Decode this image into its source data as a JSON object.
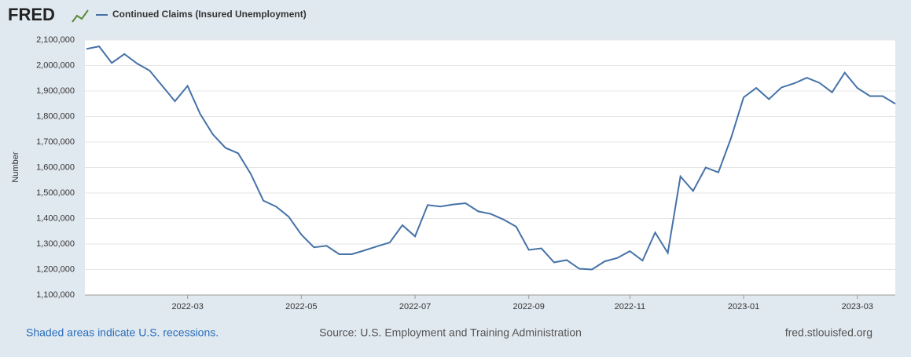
{
  "logo": "FRED",
  "chart_data": {
    "type": "line",
    "y_label": "Number",
    "categories": [
      null,
      null,
      null,
      null,
      null,
      null,
      null,
      null,
      "2022-03",
      null,
      null,
      null,
      null,
      null,
      null,
      null,
      null,
      "2022-05",
      null,
      null,
      null,
      null,
      null,
      null,
      null,
      null,
      "2022-07",
      null,
      null,
      null,
      null,
      null,
      null,
      null,
      null,
      "2022-09",
      null,
      null,
      null,
      null,
      null,
      null,
      null,
      "2022-11",
      null,
      null,
      null,
      null,
      null,
      null,
      null,
      null,
      "2023-01",
      null,
      null,
      null,
      null,
      null,
      null,
      null,
      null,
      "2023-03",
      null,
      null,
      null
    ],
    "series": [
      {
        "name": "Continued Claims (Insured Unemployment)",
        "color": "#4572a7",
        "values": [
          2065000,
          2075000,
          2010000,
          2045000,
          2008000,
          1980000,
          1920000,
          1860000,
          1920000,
          1810000,
          1730000,
          1677000,
          1656000,
          1575000,
          1470000,
          1447000,
          1407000,
          1337000,
          1287000,
          1293000,
          1260000,
          1260000,
          1275000,
          1291000,
          1306000,
          1374000,
          1330000,
          1453000,
          1447000,
          1455000,
          1460000,
          1428000,
          1418000,
          1396000,
          1368000,
          1277000,
          1283000,
          1228000,
          1237000,
          1203000,
          1200000,
          1232000,
          1245000,
          1272000,
          1235000,
          1345000,
          1265000,
          1565000,
          1508000,
          1600000,
          1581000,
          1715000,
          1875000,
          1912000,
          1868000,
          1914000,
          1930000,
          1952000,
          1932000,
          1895000,
          1972000,
          1912000,
          1880000,
          1880000,
          1850000
        ]
      }
    ],
    "ylim": [
      1100000,
      2100000
    ],
    "yticks": [
      {
        "value": 1100000,
        "label": "1,100,000"
      },
      {
        "value": 1200000,
        "label": "1,200,000"
      },
      {
        "value": 1300000,
        "label": "1,300,000"
      },
      {
        "value": 1400000,
        "label": "1,400,000"
      },
      {
        "value": 1500000,
        "label": "1,500,000"
      },
      {
        "value": 1600000,
        "label": "1,600,000"
      },
      {
        "value": 1700000,
        "label": "1,700,000"
      },
      {
        "value": 1800000,
        "label": "1,800,000"
      },
      {
        "value": 1900000,
        "label": "1,900,000"
      },
      {
        "value": 2000000,
        "label": "2,000,000"
      },
      {
        "value": 2100000,
        "label": "2,100,000"
      }
    ],
    "grid": true
  },
  "footer": {
    "recessions": "Shaded areas indicate U.S. recessions.",
    "source": "Source: U.S. Employment and Training Administration",
    "site": "fred.stlouisfed.org"
  }
}
